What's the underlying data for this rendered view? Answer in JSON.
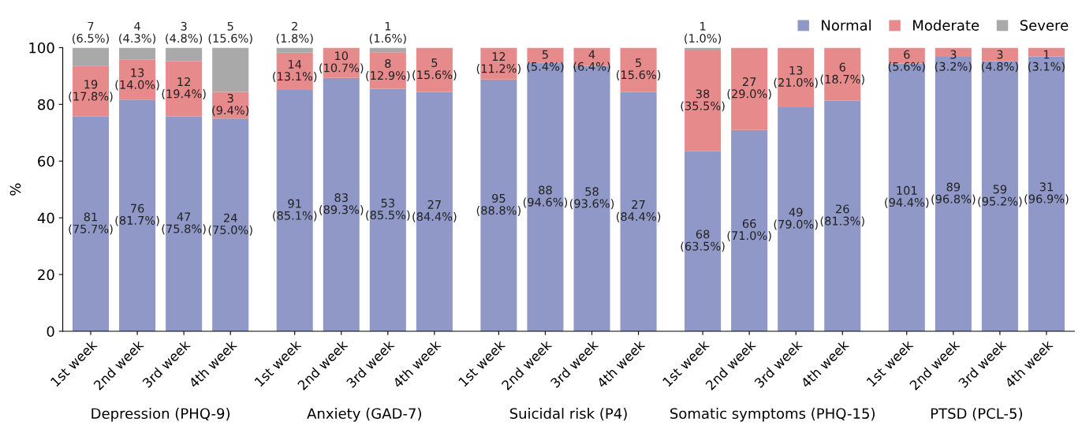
{
  "chart_data": {
    "type": "bar",
    "stacked": true,
    "ylabel": "%",
    "categories": [
      "1st week",
      "2nd week",
      "3rd week",
      "4th week",
      "1st week",
      "2nd week",
      "3rd week",
      "4th week",
      "1st week",
      "2nd week",
      "3rd week",
      "4th week",
      "1st week",
      "2nd week",
      "3rd week",
      "4th week",
      "1st week",
      "2nd week",
      "3rd week",
      "4th week"
    ],
    "series": [
      {
        "name": "Normal",
        "color": "#8f98c6",
        "values": [
          75.7,
          81.7,
          75.8,
          75.0,
          85.1,
          89.3,
          85.5,
          84.4,
          88.8,
          94.6,
          93.6,
          84.4,
          63.5,
          71.0,
          79.0,
          81.3,
          94.4,
          96.8,
          95.2,
          96.9
        ],
        "value_labels": [
          "81\n(75.7%)",
          "76\n(81.7%)",
          "47\n(75.8%)",
          "24\n(75.0%)",
          "91\n(85.1%)",
          "83\n(89.3%)",
          "53\n(85.5%)",
          "27\n(84.4%)",
          "95\n(88.8%)",
          "88\n(94.6%)",
          "58\n(93.6%)",
          "27\n(84.4%)",
          "68\n(63.5%)",
          "66\n(71.0%)",
          "49\n(79.0%)",
          "26\n(81.3%)",
          "101\n(94.4%)",
          "89\n(96.8%)",
          "59\n(95.2%)",
          "31\n(96.9%)"
        ]
      },
      {
        "name": "Moderate",
        "color": "#e78a8b",
        "values": [
          17.8,
          14.0,
          19.4,
          9.4,
          13.1,
          10.7,
          12.9,
          15.6,
          11.2,
          5.4,
          6.4,
          15.6,
          35.5,
          29.0,
          21.0,
          18.7,
          5.6,
          3.2,
          4.8,
          3.1
        ],
        "value_labels": [
          "19\n(17.8%)",
          "13\n(14.0%)",
          "12\n(19.4%)",
          "3\n(9.4%)",
          "14\n(13.1%)",
          "10\n(10.7%)",
          "8\n(12.9%)",
          "5\n(15.6%)",
          "12\n(11.2%)",
          "5\n(5.4%)",
          "4\n(6.4%)",
          "5\n(15.6%)",
          "38\n(35.5%)",
          "27\n(29.0%)",
          "13\n(21.0%)",
          "6\n(18.7%)",
          "6\n(5.6%)",
          "3\n(3.2%)",
          "3\n(4.8%)",
          "1\n(3.1%)"
        ]
      },
      {
        "name": "Severe",
        "color": "#a9a9a9",
        "values": [
          6.5,
          4.3,
          4.8,
          15.6,
          1.8,
          null,
          1.6,
          null,
          null,
          null,
          null,
          null,
          1.0,
          null,
          null,
          null,
          null,
          null,
          null,
          null
        ],
        "value_labels": [
          "7\n(6.5%)",
          "4\n(4.3%)",
          "3\n(4.8%)",
          "5\n(15.6%)",
          "2\n(1.8%)",
          null,
          "1\n(1.6%)",
          null,
          null,
          null,
          null,
          null,
          "1\n(1.0%)",
          null,
          null,
          null,
          null,
          null,
          null,
          null
        ]
      }
    ],
    "annotations": [
      "Depression (PHQ-9)",
      "Anxiety (GAD-7)",
      "Suicidal risk (P4)",
      "Somatic symptoms (PHQ-15)",
      "PTSD (PCL-5)"
    ],
    "ylim": [
      0,
      100
    ],
    "yticks": [
      0,
      20,
      40,
      60,
      80,
      100
    ],
    "legend": "top right"
  }
}
